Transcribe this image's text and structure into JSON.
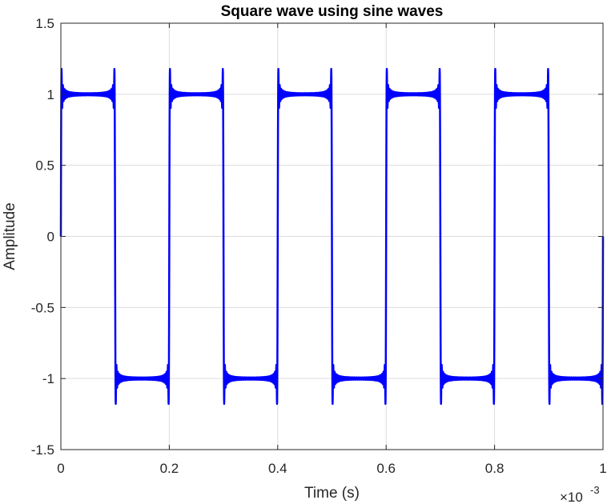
{
  "chart_data": {
    "type": "line",
    "title": "Square wave using sine waves",
    "xlabel": "Time (s)",
    "ylabel": "Amplitude",
    "xlim": [
      0,
      1
    ],
    "ylim": [
      -1.5,
      1.5
    ],
    "x_exponent_base": "×10",
    "x_exponent_power": "-3",
    "x_ticks": [
      "0",
      "0.2",
      "0.4",
      "0.6",
      "0.8",
      "1"
    ],
    "x_tick_values": [
      0,
      0.2,
      0.4,
      0.6,
      0.8,
      1
    ],
    "y_ticks": [
      "1.5",
      "1",
      "0.5",
      "0",
      "-0.5",
      "-1",
      "-1.5"
    ],
    "y_tick_values": [
      1.5,
      1,
      0.5,
      0,
      -0.5,
      -1,
      -1.5
    ],
    "grid": true,
    "series": [
      {
        "color": "#0000ff",
        "period": 0.2,
        "half_period": 0.1,
        "amplitude": 1,
        "gibbs_overshoot": 1.18,
        "x_start": 0,
        "x_end": 1
      }
    ]
  }
}
